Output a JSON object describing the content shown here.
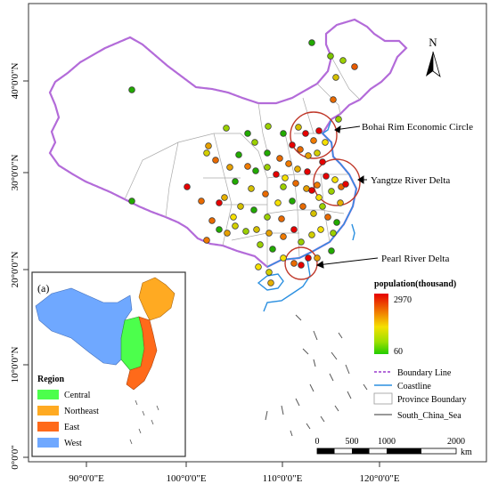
{
  "axes": {
    "x_ticks": [
      "90°0'0\"E",
      "100°0'0\"E",
      "110°0'0\"E",
      "120°0'0\"E"
    ],
    "y_ticks": [
      "40°0'0\"N",
      "30°0'0\"N",
      "20°0'0\"N",
      "10°0'0\"N",
      "0°0'0\""
    ]
  },
  "north_arrow": {
    "label": "N"
  },
  "annotations": {
    "bohai": "Bohai Rim Economic Circle",
    "yangtze": "Yangtze River Delta",
    "pearl": "Pearl River Delta"
  },
  "population_legend": {
    "title": "population(thousand)",
    "max_label": "2970",
    "min_label": "60",
    "max_value": 2970,
    "min_value": 60,
    "colors": [
      "#e60000",
      "#f07a00",
      "#f5e000",
      "#9be000",
      "#22cc00"
    ]
  },
  "line_legend": {
    "boundary": "Boundary Line",
    "coastline": "Coastline",
    "province": "Province Boundary",
    "scs": "South_China_Sea"
  },
  "scale_bar": {
    "labels": [
      "0",
      "500",
      "1000",
      "2000"
    ],
    "unit": "km"
  },
  "inset": {
    "label": "(a)",
    "legend_title": "Region",
    "regions": [
      {
        "name": "Central",
        "color": "#4cff4c"
      },
      {
        "name": "Northeast",
        "color": "#ffaa22"
      },
      {
        "name": "East",
        "color": "#ff6a1a"
      },
      {
        "name": "West",
        "color": "#6fa8ff"
      }
    ]
  },
  "colors": {
    "boundary": "#b36bd9",
    "coastline": "#2a8fe0",
    "province": "#aaaaaa",
    "circle": "#c0392b"
  }
}
